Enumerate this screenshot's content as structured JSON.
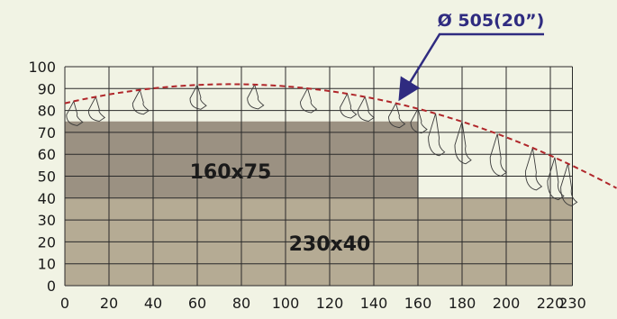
{
  "callout": {
    "label": "Ø 505(20”)"
  },
  "axes": {
    "x_ticks": [
      "0",
      "20",
      "40",
      "60",
      "80",
      "100",
      "120",
      "140",
      "160",
      "180",
      "200",
      "220",
      "230"
    ],
    "y_ticks": [
      "0",
      "10",
      "20",
      "30",
      "40",
      "50",
      "60",
      "70",
      "80",
      "90",
      "100"
    ],
    "x_range": [
      0,
      230
    ],
    "y_range": [
      0,
      100
    ],
    "grid": true
  },
  "regions": [
    {
      "label": "160x75",
      "width": 160,
      "height": 75,
      "color": "#9b9182"
    },
    {
      "label": "230x40",
      "width": 230,
      "height": 40,
      "color": "#b5ab94"
    }
  ],
  "colors": {
    "background": "#f1f3e4",
    "arc": "#b0262a",
    "arrow": "#2f2b80",
    "text": "#1a1a1a"
  }
}
